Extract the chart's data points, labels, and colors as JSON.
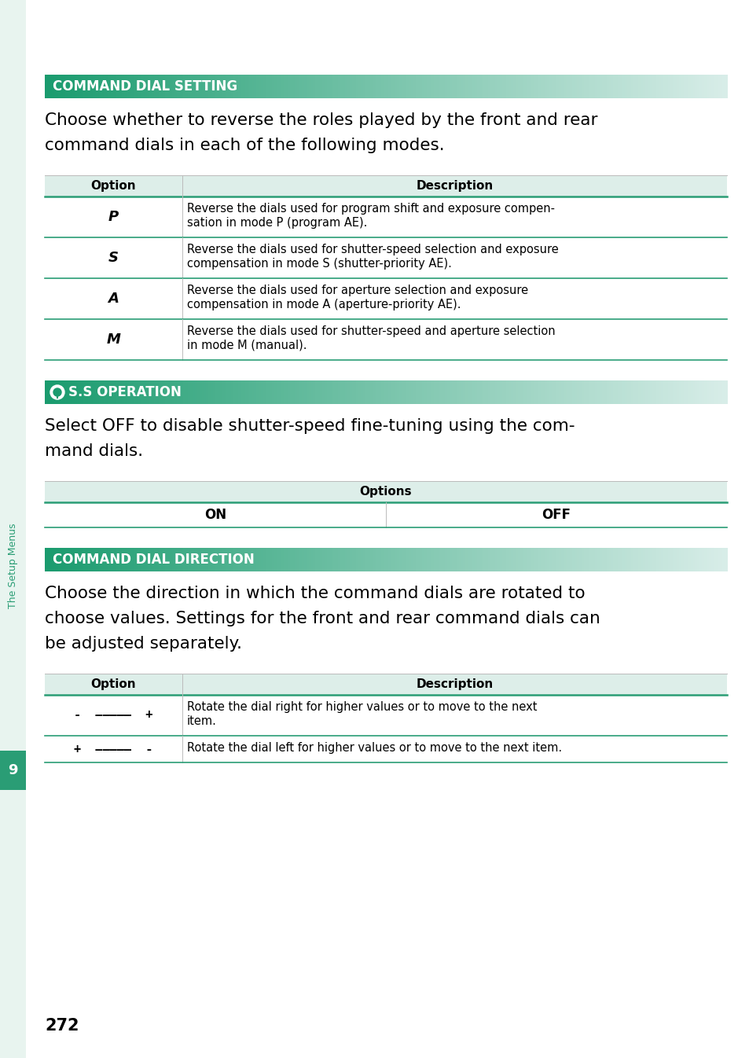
{
  "page_bg": "#ffffff",
  "sidebar_bg": "#e8f4ef",
  "sidebar_tab_bg": "#2a9d75",
  "sidebar_tab_text": "9",
  "sidebar_label": "The Setup Menus",
  "sidebar_label_color": "#2a9d75",
  "page_number": "272",
  "header_color_left": "#1a9b6e",
  "header_color_right": "#d8ede8",
  "header_text_color": "#ffffff",
  "table_header_bg": "#ddeee9",
  "table_divider_color": "#2a9d75",
  "col_divider_color": "#bbbbbb",
  "sec1_title": "COMMAND DIAL SETTING",
  "sec1_intro_lines": [
    "Choose whether to reverse the roles played by the front and rear",
    "command dials in each of the following modes."
  ],
  "sec1_rows": [
    [
      "P",
      "Reverse the dials used for program shift and exposure compen-",
      "sation in mode ​P​ (program AE)."
    ],
    [
      "S",
      "Reverse the dials used for shutter-speed selection and exposure",
      "compensation in mode ​S​ (shutter-priority AE)."
    ],
    [
      "A",
      "Reverse the dials used for aperture selection and exposure",
      "compensation in mode ​A​ (aperture-priority AE)."
    ],
    [
      "M",
      "Reverse the dials used for shutter-speed and aperture selection",
      "in mode ​M​ (manual)."
    ]
  ],
  "sec2_title": "S.S OPERATION",
  "sec2_intro_lines": [
    "Select ​OFF​ to disable shutter-speed fine-tuning using the com-",
    "mand dials."
  ],
  "sec3_title": "COMMAND DIAL DIRECTION",
  "sec3_intro_lines": [
    "Choose the direction in which the command dials are rotated to",
    "choose values. Settings for the front and rear command dials can",
    "be adjusted separately."
  ],
  "sec3_rows": [
    [
      "-  —————  +",
      "Rotate the dial right for higher values or to move to the next",
      "item."
    ],
    [
      "+  —————  -",
      "Rotate the dial left for higher values or to move to the next item.",
      ""
    ]
  ]
}
